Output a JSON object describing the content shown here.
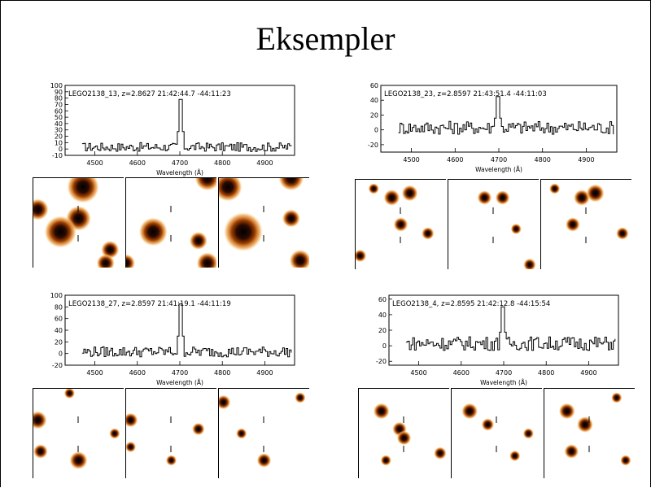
{
  "slide": {
    "title": "Eksempler"
  },
  "panel_colors": {
    "line": "#000000",
    "blob": "#a04000"
  },
  "chart_data": [
    {
      "type": "line",
      "annotation": "LEGO2138_13, z=2.8627    21:42:44.7  -44:11:23",
      "xlabel": "Wavelength (Å)",
      "xlim": [
        4430,
        4970
      ],
      "ylim": [
        -10,
        100
      ],
      "yticks": [
        -10,
        0,
        10,
        20,
        30,
        40,
        50,
        60,
        70,
        80,
        90,
        100
      ],
      "xticks": [
        "4500",
        "4600",
        "4700",
        "4800",
        "4900"
      ],
      "xtick_values": [
        4500,
        4600,
        4700,
        4800,
        4900
      ],
      "line_peak_x": 4700,
      "line_peak_y": 78,
      "noise": 7,
      "stamps": [
        {
          "name": "narrow",
          "blobs": [
            [
              0.55,
              0.1,
              0.18
            ],
            [
              0.5,
              0.45,
              0.14
            ],
            [
              0.3,
              0.6,
              0.18
            ],
            [
              0.05,
              0.35,
              0.12
            ],
            [
              0.85,
              0.8,
              0.1
            ],
            [
              0.8,
              0.95,
              0.1
            ]
          ]
        },
        {
          "name": "broad-blue",
          "blobs": [
            [
              0.3,
              0.6,
              0.16
            ],
            [
              0.9,
              0.0,
              0.14
            ],
            [
              0.8,
              0.7,
              0.1
            ],
            [
              0.9,
              0.95,
              0.12
            ],
            [
              0.0,
              0.95,
              0.1
            ]
          ]
        },
        {
          "name": "broad-red",
          "blobs": [
            [
              0.27,
              0.6,
              0.22
            ],
            [
              0.1,
              0.1,
              0.16
            ],
            [
              0.8,
              0.0,
              0.14
            ],
            [
              0.8,
              0.45,
              0.1
            ],
            [
              0.9,
              0.92,
              0.12
            ]
          ]
        }
      ]
    },
    {
      "type": "line",
      "annotation": "LEGO2138_23, z=2.8597    21:43:51.4  -44:11:03",
      "xlabel": "Wavelength (Å)",
      "xlim": [
        4430,
        4970
      ],
      "ylim": [
        -30,
        60
      ],
      "yticks": [
        -20,
        0,
        20,
        40,
        60
      ],
      "xticks": [
        "4500",
        "4600",
        "4700",
        "4800",
        "4900"
      ],
      "xtick_values": [
        4500,
        4600,
        4700,
        4800,
        4900
      ],
      "line_peak_x": 4695,
      "line_peak_y": 45,
      "noise": 9,
      "stamps": [
        {
          "name": "narrow",
          "blobs": [
            [
              0.4,
              0.2,
              0.09
            ],
            [
              0.6,
              0.15,
              0.09
            ],
            [
              0.5,
              0.5,
              0.08
            ],
            [
              0.8,
              0.6,
              0.07
            ],
            [
              0.05,
              0.85,
              0.07
            ],
            [
              0.2,
              0.1,
              0.06
            ]
          ]
        },
        {
          "name": "broad-blue",
          "blobs": [
            [
              0.4,
              0.2,
              0.08
            ],
            [
              0.6,
              0.2,
              0.08
            ],
            [
              0.75,
              0.55,
              0.06
            ],
            [
              0.9,
              0.95,
              0.07
            ]
          ]
        },
        {
          "name": "broad-red",
          "blobs": [
            [
              0.45,
              0.2,
              0.09
            ],
            [
              0.6,
              0.15,
              0.1
            ],
            [
              0.35,
              0.5,
              0.08
            ],
            [
              0.9,
              0.6,
              0.07
            ],
            [
              0.15,
              0.1,
              0.06
            ]
          ]
        }
      ]
    },
    {
      "type": "line",
      "annotation": "LEGO2138_27, z=2.8597    21:41:19.1  -44:11:19",
      "xlabel": "Wavelength (Å)",
      "xlim": [
        4430,
        4970
      ],
      "ylim": [
        -20,
        100
      ],
      "yticks": [
        -20,
        0,
        20,
        40,
        60,
        80,
        100
      ],
      "xticks": [
        "4500",
        "4600",
        "4700",
        "4800",
        "4900"
      ],
      "xtick_values": [
        4500,
        4600,
        4700,
        4800,
        4900
      ],
      "line_peak_x": 4700,
      "line_peak_y": 85,
      "noise": 9,
      "stamps": [
        {
          "name": "narrow",
          "blobs": [
            [
              0.05,
              0.35,
              0.1
            ],
            [
              0.08,
              0.7,
              0.08
            ],
            [
              0.5,
              0.8,
              0.1
            ],
            [
              0.4,
              0.05,
              0.06
            ],
            [
              0.9,
              0.5,
              0.06
            ]
          ]
        },
        {
          "name": "broad-blue",
          "blobs": [
            [
              0.05,
              0.35,
              0.08
            ],
            [
              0.05,
              0.65,
              0.06
            ],
            [
              0.5,
              0.8,
              0.06
            ],
            [
              0.8,
              0.45,
              0.07
            ]
          ]
        },
        {
          "name": "broad-red",
          "blobs": [
            [
              0.05,
              0.15,
              0.08
            ],
            [
              0.5,
              0.8,
              0.08
            ],
            [
              0.25,
              0.5,
              0.06
            ],
            [
              0.9,
              0.1,
              0.06
            ]
          ]
        }
      ]
    },
    {
      "type": "line",
      "annotation": "LEGO2138_4, z=2.8595    21:42:12.8  -44:15:54",
      "xlabel": "Wavelength (Å)",
      "xlim": [
        4430,
        4970
      ],
      "ylim": [
        -25,
        65
      ],
      "yticks": [
        -20,
        0,
        20,
        40,
        60
      ],
      "xticks": [
        "4500",
        "4600",
        "4700",
        "4800",
        "4900"
      ],
      "xtick_values": [
        4500,
        4600,
        4700,
        4800,
        4900
      ],
      "line_peak_x": 4695,
      "line_peak_y": 50,
      "noise": 9,
      "stamps": [
        {
          "name": "narrow",
          "blobs": [
            [
              0.25,
              0.25,
              0.09
            ],
            [
              0.45,
              0.45,
              0.08
            ],
            [
              0.5,
              0.55,
              0.08
            ],
            [
              0.9,
              0.72,
              0.07
            ],
            [
              0.3,
              0.8,
              0.06
            ]
          ]
        },
        {
          "name": "broad-blue",
          "blobs": [
            [
              0.2,
              0.25,
              0.09
            ],
            [
              0.4,
              0.4,
              0.07
            ],
            [
              0.7,
              0.75,
              0.06
            ],
            [
              0.85,
              0.5,
              0.06
            ]
          ]
        },
        {
          "name": "broad-red",
          "blobs": [
            [
              0.25,
              0.25,
              0.09
            ],
            [
              0.45,
              0.4,
              0.09
            ],
            [
              0.3,
              0.7,
              0.08
            ],
            [
              0.9,
              0.8,
              0.06
            ],
            [
              0.8,
              0.1,
              0.06
            ]
          ]
        }
      ]
    }
  ]
}
